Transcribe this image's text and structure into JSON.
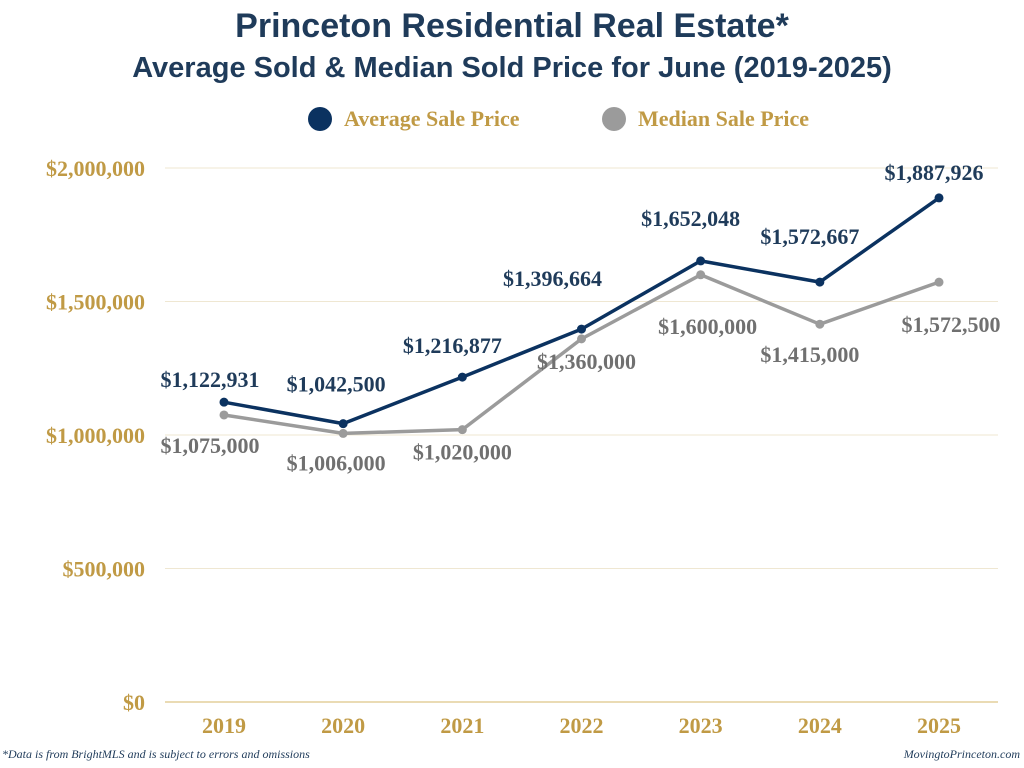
{
  "header": {
    "title": "Princeton Residential Real Estate*",
    "subtitle": "Average Sold & Median Sold Price for June (2019-2025)"
  },
  "legend": [
    {
      "label": "Average Sale Price",
      "color": "#0b3260"
    },
    {
      "label": "Median Sale Price",
      "color": "#9b9b9b"
    }
  ],
  "footer": {
    "note": "*Data is from BrightMLS and is subject to errors and omissions",
    "source": "MovingtoPrinceton.com"
  },
  "colors": {
    "axis_text": "#c09a45",
    "grid": "#efe7d2",
    "baseline": "#e3cf9c",
    "average_label": "#1f3b5a",
    "median_label": "#707070"
  },
  "chart_data": {
    "type": "line",
    "title": "Princeton Residential Real Estate* — Average Sold & Median Sold Price for June (2019-2025)",
    "xlabel": "",
    "ylabel": "",
    "categories": [
      "2019",
      "2020",
      "2021",
      "2022",
      "2023",
      "2024",
      "2025"
    ],
    "ylim": [
      0,
      2000000
    ],
    "yticks": [
      0,
      500000,
      1000000,
      1500000,
      2000000
    ],
    "ytick_labels": [
      "$0",
      "$500,000",
      "$1,000,000",
      "$1,500,000",
      "$2,000,000"
    ],
    "grid": true,
    "legend_position": "top-center",
    "series": [
      {
        "name": "Average Sale Price",
        "color": "#0b3260",
        "values": [
          1122931,
          1042500,
          1216877,
          1396664,
          1652048,
          1572667,
          1887926
        ],
        "labels": [
          "$1,122,931",
          "$1,042,500",
          "$1,216,877",
          "$1,396,664",
          "$1,652,048",
          "$1,572,667",
          "$1,887,926"
        ]
      },
      {
        "name": "Median Sale Price",
        "color": "#9b9b9b",
        "values": [
          1075000,
          1006000,
          1020000,
          1360000,
          1600000,
          1415000,
          1572500
        ],
        "labels": [
          "$1,075,000",
          "$1,006,000",
          "$1,020,000",
          "$1,360,000",
          "$1,600,000",
          "$1,415,000",
          "$1,572,500"
        ]
      }
    ]
  }
}
